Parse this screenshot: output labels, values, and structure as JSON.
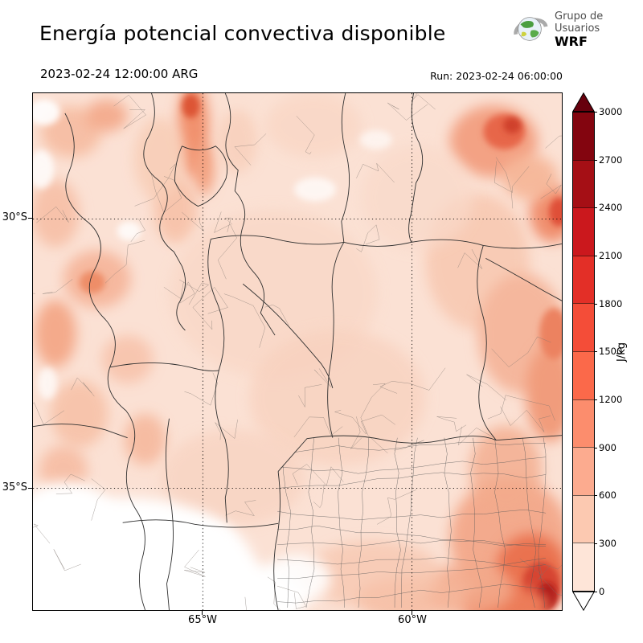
{
  "header": {
    "title": "Energía potencial convectiva disponible",
    "valid_time": "2023-02-24 12:00:00 ARG",
    "run_time": "Run: 2023-02-24 06:00:00",
    "logo": {
      "line1": "Grupo de",
      "line2": "Usuarios",
      "line3": "WRF"
    }
  },
  "map": {
    "lat_ticks": [
      "30°S",
      "35°S"
    ],
    "lon_ticks": [
      "65°W",
      "60°W"
    ]
  },
  "colorbar": {
    "unit_label": "J/kg",
    "tick_labels": [
      "3000",
      "2700",
      "2400",
      "2100",
      "1800",
      "1500",
      "1200",
      "900",
      "600",
      "300",
      "0"
    ],
    "segment_colors_top_to_bottom": [
      "#83050f",
      "#a50f15",
      "#cb181d",
      "#e32f27",
      "#f44d38",
      "#fb694a",
      "#fc8d6d",
      "#fcab8f",
      "#fcc9b1",
      "#fee5d8"
    ],
    "over_color": "#67000d",
    "under_color": "#ffffff"
  },
  "chart_data": {
    "type": "heatmap",
    "title": "Energía potencial convectiva disponible",
    "variable": "CAPE",
    "units": "J/kg",
    "valid_time": "2023-02-24 12:00:00 ARG",
    "run_time": "2023-02-24 06:00:00",
    "levels": [
      0,
      300,
      600,
      900,
      1200,
      1500,
      1800,
      2100,
      2400,
      2700,
      3000
    ],
    "colormap": "Reds",
    "x_tick_labels": [
      "65°W",
      "60°W"
    ],
    "y_tick_labels": [
      "30°S",
      "35°S"
    ],
    "grid": "dotted",
    "legend_position": "right",
    "summary": "Filled CAPE contours over central-northern Argentina with province and department boundaries. Mostly 0-600 J/kg; maxima near 900-1500+ J/kg along the northeastern and southeastern edges; near-zero (white) region in the southwest quadrant."
  }
}
